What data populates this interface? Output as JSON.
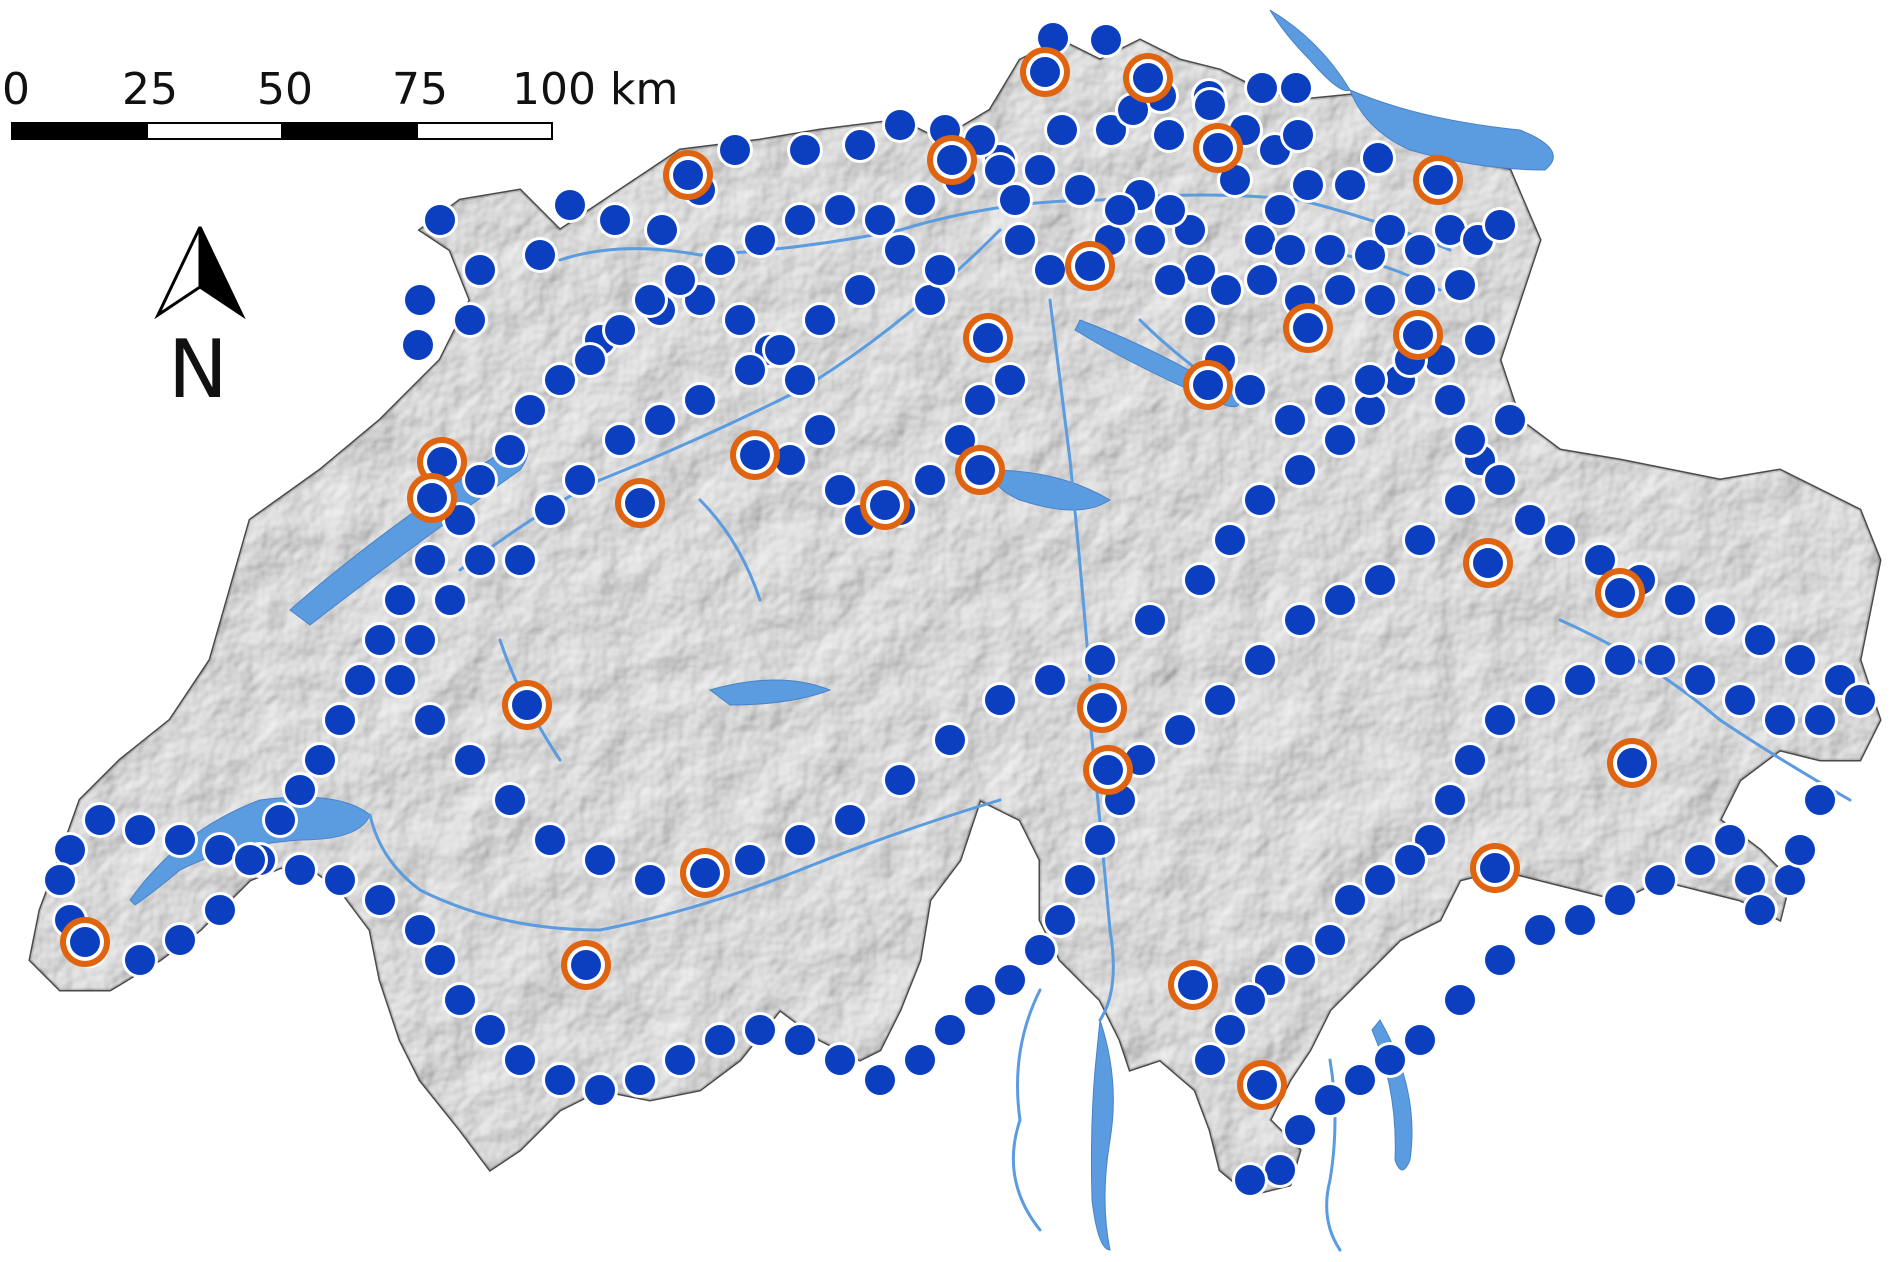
{
  "scale_bar": {
    "labels": [
      "0",
      "25",
      "50",
      "75",
      "100 km"
    ],
    "colors": [
      "#000000",
      "#ffffff"
    ]
  },
  "north_arrow": {
    "letter": "N",
    "icon": "north-arrow-icon"
  },
  "colors": {
    "terrain_fill": "#cfcfcf",
    "terrain_shadow": "#9a9a9a",
    "border": "#4a4a4a",
    "water": "#5b9be0",
    "station_fill": "#0b3fbf",
    "station_ring": "#ffffff",
    "highlight_ring": "#e0630f"
  },
  "legend_meaning": {
    "station": "blue dot",
    "highlighted_station": "blue dot with orange ring"
  }
}
